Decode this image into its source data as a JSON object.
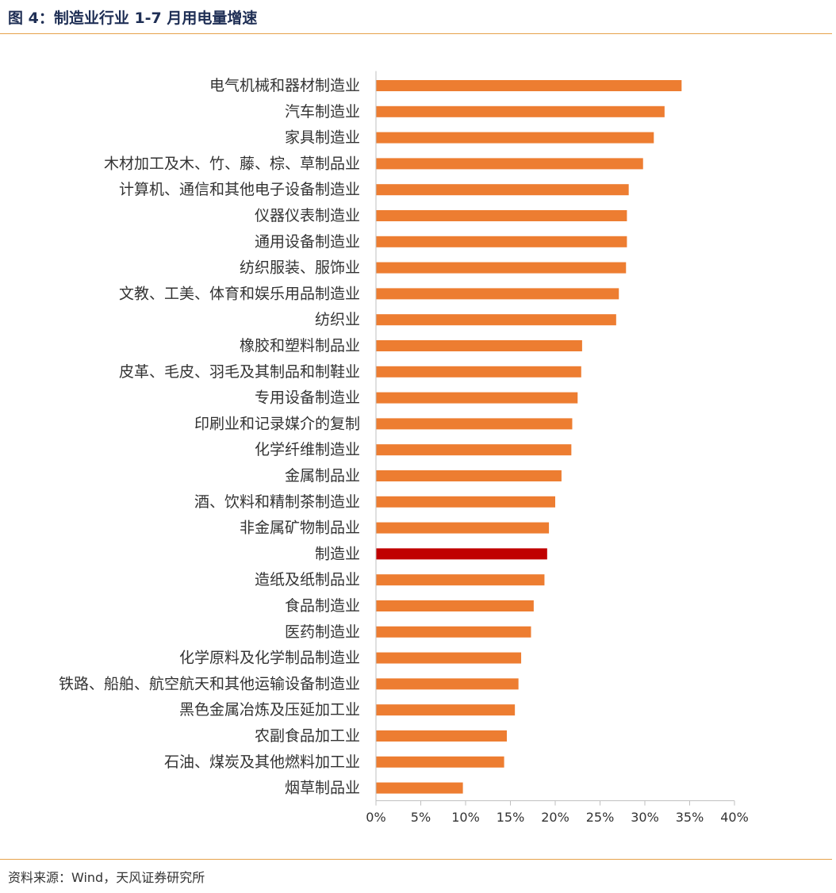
{
  "header": {
    "title": "图 4：制造业行业 1-7 月用电量增速"
  },
  "footer": {
    "source": "资料来源：Wind，天风证券研究所"
  },
  "colors": {
    "bar": "#ED7D31",
    "highlight": "#C00000",
    "axis": "#BFBFBF",
    "rule": "#E6A24A",
    "title": "#1F2F55"
  },
  "chart_data": {
    "type": "bar",
    "orientation": "horizontal",
    "value_format": "percent",
    "xlim": [
      0,
      0.4
    ],
    "x_ticks": [
      0,
      0.05,
      0.1,
      0.15,
      0.2,
      0.25,
      0.3,
      0.35,
      0.4
    ],
    "x_tick_labels": [
      "0%",
      "5%",
      "10%",
      "15%",
      "20%",
      "25%",
      "30%",
      "35%",
      "40%"
    ],
    "grid": false,
    "highlight_category": "制造业",
    "categories": [
      "电气机械和器材制造业",
      "汽车制造业",
      "家具制造业",
      "木材加工及木、竹、藤、棕、草制品业",
      "计算机、通信和其他电子设备制造业",
      "仪器仪表制造业",
      "通用设备制造业",
      "纺织服装、服饰业",
      "文教、工美、体育和娱乐用品制造业",
      "纺织业",
      "橡胶和塑料制品业",
      "皮革、毛皮、羽毛及其制品和制鞋业",
      "专用设备制造业",
      "印刷业和记录媒介的复制",
      "化学纤维制造业",
      "金属制品业",
      "酒、饮料和精制茶制造业",
      "非金属矿物制品业",
      "制造业",
      "造纸及纸制品业",
      "食品制造业",
      "医药制造业",
      "化学原料及化学制品制造业",
      "铁路、船舶、航空航天和其他运输设备制造业",
      "黑色金属冶炼及压延加工业",
      "农副食品加工业",
      "石油、煤炭及其他燃料加工业",
      "烟草制品业"
    ],
    "values": [
      0.341,
      0.322,
      0.31,
      0.298,
      0.282,
      0.28,
      0.28,
      0.279,
      0.271,
      0.268,
      0.23,
      0.229,
      0.225,
      0.219,
      0.218,
      0.207,
      0.2,
      0.193,
      0.191,
      0.188,
      0.176,
      0.173,
      0.162,
      0.159,
      0.155,
      0.146,
      0.143,
      0.097
    ]
  }
}
